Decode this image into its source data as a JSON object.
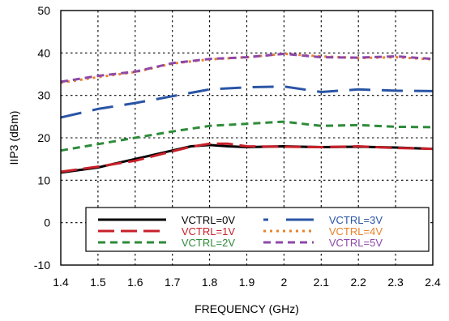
{
  "chart_data": {
    "type": "line",
    "xlabel": "FREQUENCY (GHz)",
    "ylabel": "IIP3 (dBm)",
    "xlim": [
      1.4,
      2.4
    ],
    "ylim": [
      -10,
      50
    ],
    "x_ticks": [
      "1.4",
      "1.5",
      "1.6",
      "1.7",
      "1.8",
      "1.9",
      "2",
      "2.1",
      "2.2",
      "2.3",
      "2.4"
    ],
    "y_ticks": [
      "-10",
      "0",
      "10",
      "20",
      "30",
      "40",
      "50"
    ],
    "grid": true,
    "legend_position": "bottom-center",
    "series": [
      {
        "name": "VCTRL=0V",
        "color": "#000000",
        "dash": "solid",
        "x": [
          1.4,
          1.5,
          1.6,
          1.7,
          1.75,
          1.8,
          1.85,
          1.9,
          2.0,
          2.1,
          2.2,
          2.3,
          2.4
        ],
        "y": [
          11.8,
          13.0,
          15.0,
          17.0,
          18.0,
          18.3,
          18.0,
          17.8,
          18.0,
          17.8,
          17.9,
          17.7,
          17.4
        ]
      },
      {
        "name": "VCTRL=1V",
        "color": "#c8202a",
        "dash": "longdash",
        "x": [
          1.4,
          1.5,
          1.6,
          1.7,
          1.75,
          1.8,
          1.85,
          1.9,
          2.0,
          2.1,
          2.2,
          2.3,
          2.4
        ],
        "y": [
          12.0,
          13.2,
          14.6,
          16.8,
          17.9,
          18.6,
          18.6,
          18.0,
          17.9,
          17.8,
          18.0,
          17.6,
          17.4
        ]
      },
      {
        "name": "VCTRL=2V",
        "color": "#2e8b3a",
        "dash": "dash",
        "x": [
          1.4,
          1.5,
          1.6,
          1.7,
          1.8,
          1.9,
          2.0,
          2.1,
          2.2,
          2.3,
          2.4
        ],
        "y": [
          17.0,
          18.5,
          20.0,
          21.5,
          22.8,
          23.3,
          23.8,
          22.8,
          23.0,
          22.6,
          22.5
        ]
      },
      {
        "name": "VCTRL=3V",
        "color": "#2a55a5",
        "dash": "longgap",
        "x": [
          1.4,
          1.5,
          1.6,
          1.7,
          1.8,
          1.9,
          2.0,
          2.1,
          2.2,
          2.3,
          2.4
        ],
        "y": [
          24.8,
          26.8,
          28.2,
          29.8,
          31.4,
          31.9,
          32.1,
          30.8,
          31.4,
          31.1,
          31.0
        ]
      },
      {
        "name": "VCTRL=4V",
        "color": "#e8822a",
        "dash": "dot",
        "x": [
          1.4,
          1.5,
          1.6,
          1.7,
          1.8,
          1.9,
          2.0,
          2.1,
          2.2,
          2.3,
          2.4
        ],
        "y": [
          33.0,
          34.3,
          35.5,
          37.5,
          38.5,
          39.0,
          39.8,
          39.2,
          38.8,
          39.0,
          38.5
        ]
      },
      {
        "name": "VCTRL=5V",
        "color": "#8e48a8",
        "dash": "dash",
        "x": [
          1.4,
          1.5,
          1.6,
          1.7,
          1.8,
          1.9,
          2.0,
          2.1,
          2.2,
          2.3,
          2.4
        ],
        "y": [
          33.2,
          34.6,
          35.6,
          37.6,
          38.6,
          39.0,
          39.8,
          39.0,
          38.9,
          39.2,
          38.6
        ]
      }
    ]
  }
}
